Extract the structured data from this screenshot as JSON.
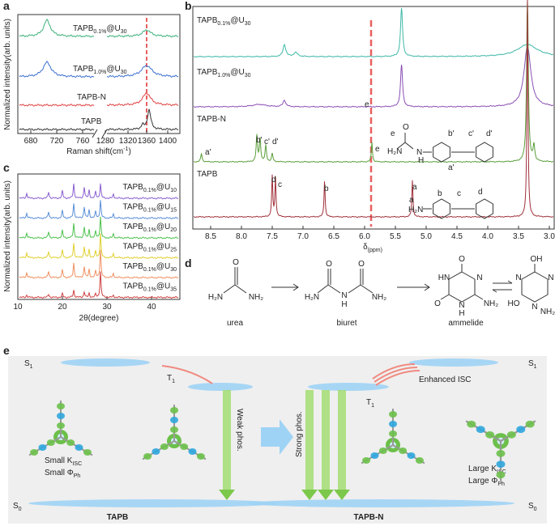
{
  "a": {
    "label": "a",
    "y_label": "Normalized intensity(arb. units)",
    "x_label": [
      "Raman shift(cm",
      "-1",
      ")"
    ],
    "xticks": [
      680,
      720,
      760,
      1280,
      1320,
      1360,
      1400
    ],
    "traces": [
      [
        "TAPB",
        "0.1%",
        "@U",
        "30"
      ],
      [
        "TAPB",
        "1.0%",
        "@U",
        "30"
      ],
      [
        "TAPB-N"
      ],
      [
        "TAPB"
      ]
    ]
  },
  "b": {
    "label": "b",
    "x_label": [
      "δ",
      "(ppm)"
    ],
    "xticks": [
      "8.5",
      "8.0",
      "7.5",
      "7.0",
      "6.5",
      "6.0",
      "5.5",
      "5.0",
      "4.5",
      "4.0",
      "3.5",
      "3.0"
    ],
    "traces": [
      [
        "TAPB",
        "0.1%",
        "@U",
        "30"
      ],
      [
        "TAPB",
        "1.0%",
        "@U",
        "30"
      ],
      [
        "TAPB-N"
      ],
      [
        "TAPB"
      ]
    ],
    "u_peak": "e",
    "n_peaks": [
      "a'",
      "b'",
      "c'",
      "d'",
      "e"
    ],
    "p_peaks": [
      "d",
      "c",
      "b",
      "a"
    ],
    "n_struct": [
      "e",
      "b'",
      "c'",
      "d'",
      "a'",
      "H₂N",
      "O",
      "N",
      "H"
    ],
    "p_struct": [
      "a",
      "b",
      "c",
      "d",
      "H₂N"
    ]
  },
  "c": {
    "label": "c",
    "y_label": "Normalized intensity(arb. units)",
    "x_label": "2θ(degree)",
    "xticks": [
      10,
      20,
      30,
      40
    ],
    "traces": [
      [
        "TAPB",
        "0.1%",
        "@U",
        "10"
      ],
      [
        "TAPB",
        "0.1%",
        "@U",
        "15"
      ],
      [
        "TAPB",
        "0.1%",
        "@U",
        "20"
      ],
      [
        "TAPB",
        "0.1%",
        "@U",
        "25"
      ],
      [
        "TAPB",
        "0.1%",
        "@U",
        "30"
      ],
      [
        "TAPB",
        "0.1%",
        "@U",
        "35"
      ]
    ]
  },
  "d": {
    "label": "d",
    "names": [
      "urea",
      "biuret",
      "ammelide"
    ],
    "urea": [
      "O",
      "H₂N",
      "NH₂"
    ],
    "biuret": [
      "O",
      "O",
      "H₂N",
      "N",
      "H",
      "NH₂"
    ],
    "ammelide": [
      "O",
      "HN",
      "N",
      "O",
      "N",
      "H",
      "NH₂"
    ],
    "tautomer": [
      "OH",
      "N",
      "N",
      "HO",
      "N",
      "NH₂"
    ]
  },
  "e": {
    "label": "e",
    "left_states": [
      [
        "S",
        "1"
      ],
      [
        "T",
        "1"
      ],
      [
        "S",
        "0"
      ]
    ],
    "right_states": [
      [
        "S",
        "1"
      ],
      [
        "T",
        "1"
      ],
      [
        "S",
        "0"
      ]
    ],
    "weak": "Weak phos.",
    "strong": "Strong phos.",
    "isc": "Enhanced ISC",
    "left_props": [
      [
        "Small K",
        "ISC"
      ],
      [
        "Small Φ",
        "Ph"
      ]
    ],
    "right_props": [
      [
        "Large K",
        "ISC"
      ],
      [
        "Large Φ",
        "Ph"
      ]
    ],
    "left_name": "TAPB",
    "right_name": "TAPB-N"
  }
}
